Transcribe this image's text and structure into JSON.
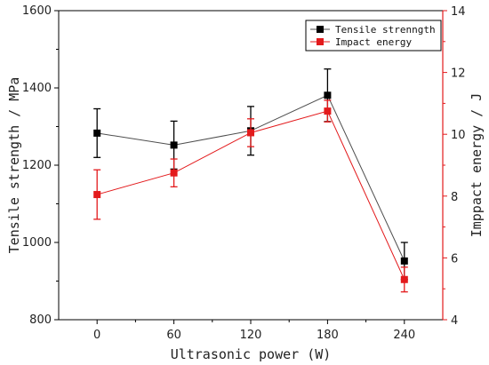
{
  "chart_data": {
    "type": "line",
    "x": [
      0,
      60,
      120,
      180,
      240
    ],
    "xlabel": "Ultrasonic power (W)",
    "x_ticks": [
      "0",
      "60",
      "120",
      "180",
      "240"
    ],
    "xlim": [
      -30,
      270
    ],
    "series": [
      {
        "name": "Tensile strenngth",
        "axis": "left",
        "color": "#4d4d4d",
        "marker_color": "#000000",
        "values": [
          1283,
          1252,
          1289,
          1381,
          952
        ],
        "error": [
          63,
          62,
          63,
          68,
          48
        ]
      },
      {
        "name": "Impact energy",
        "axis": "right",
        "color": "#e31a1c",
        "marker_color": "#e31a1c",
        "values": [
          8.05,
          8.75,
          10.05,
          10.75,
          5.3
        ],
        "error": [
          0.8,
          0.45,
          0.45,
          0.35,
          0.4
        ]
      }
    ],
    "y_left": {
      "label": "Tensile strength / MPa",
      "lim": [
        800,
        1600
      ],
      "ticks": [
        800,
        1000,
        1200,
        1400,
        1600
      ],
      "color": "#000000"
    },
    "y_right": {
      "label": "Imppact energy / J",
      "lim": [
        4,
        14
      ],
      "ticks": [
        4,
        6,
        8,
        10,
        12,
        14
      ],
      "color": "#e31a1c"
    },
    "legend_position": "top-right",
    "grid": false
  }
}
